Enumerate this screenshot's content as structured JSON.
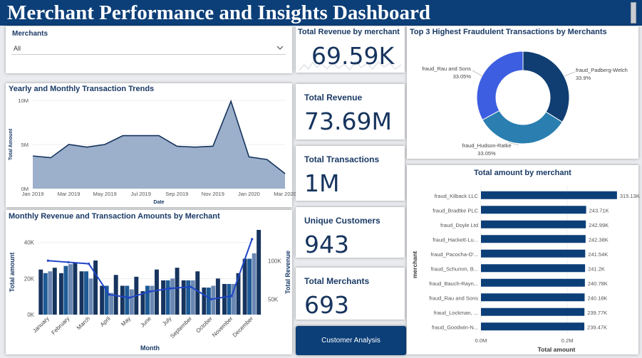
{
  "header": {
    "title": "Merchant Performance and Insights Dashboard"
  },
  "slicer": {
    "label": "Merchants",
    "value": "All"
  },
  "kpis": {
    "revenue_by_merchant": {
      "title": "Total Revenue by merchant",
      "value": "69.59K"
    },
    "total_revenue": {
      "title": "Total Revenue",
      "value": "73.69M"
    },
    "total_transactions": {
      "title": "Total Transactions",
      "value": "1M"
    },
    "unique_customers": {
      "title": "Unique Customers",
      "value": "943"
    },
    "total_merchants": {
      "title": "Total Merchants",
      "value": "693"
    }
  },
  "button": {
    "label": "Customer Analysis"
  },
  "chart_data": [
    {
      "id": "trend",
      "type": "area",
      "title": "Yearly and Monthly Transaction Trends",
      "xlabel": "Date",
      "ylabel": "Total Amount",
      "x_ticks": [
        "Jan 2019",
        "Mar 2019",
        "May 2019",
        "Jul 2019",
        "Sep 2019",
        "Nov 2019",
        "Jan 2020",
        "Mar 2020"
      ],
      "y_ticks": [
        "0M",
        "5M",
        "10M"
      ],
      "ylim": [
        0,
        10
      ],
      "x": [
        "2019-01",
        "2019-02",
        "2019-03",
        "2019-04",
        "2019-05",
        "2019-06",
        "2019-07",
        "2019-08",
        "2019-09",
        "2019-10",
        "2019-11",
        "2019-12",
        "2020-01",
        "2020-02",
        "2020-03"
      ],
      "values": [
        3.7,
        3.5,
        5.0,
        4.7,
        5.0,
        6.0,
        6.0,
        6.0,
        4.8,
        4.7,
        4.8,
        9.9,
        3.6,
        3.3,
        1.7
      ],
      "color": "#8ba2c2"
    },
    {
      "id": "monthly",
      "type": "bar",
      "title": "Monthly Revenue and Transaction Amounts by Merchant",
      "xlabel": "Month",
      "ylabel": "Total amount",
      "y2label": "Total Revenue",
      "categories": [
        "January",
        "February",
        "March",
        "April",
        "May",
        "June",
        "July",
        "September",
        "October",
        "November",
        "December"
      ],
      "y_ticks": [
        "0K",
        "20K",
        "40K"
      ],
      "ylim": [
        0,
        47
      ],
      "y2_ticks": [
        "50K",
        "100K"
      ],
      "y2lim": [
        30,
        140
      ],
      "series": [
        {
          "values": [
            25,
            23,
            24,
            16,
            16,
            13,
            19,
            19,
            15,
            17,
            31
          ],
          "color": "#16345e"
        },
        {
          "values": [
            23,
            27,
            24,
            16,
            16,
            16,
            19,
            19,
            15,
            17,
            31
          ],
          "color": "#1d5a96"
        },
        {
          "values": [
            24,
            28,
            20,
            12,
            14,
            16,
            20,
            19,
            16,
            17,
            34
          ],
          "color": "#6b88b3"
        },
        {
          "values": [
            26,
            29,
            30,
            22,
            21,
            25,
            26,
            24,
            20,
            23,
            47
          ],
          "color": "#16345e"
        }
      ],
      "line": {
        "values": [
          100,
          98,
          96,
          56,
          52,
          60,
          64,
          66,
          50,
          54,
          128
        ],
        "color": "#1f45c8"
      }
    },
    {
      "id": "donut",
      "type": "pie",
      "title": "Top 3 Highest Fraudulent Transactions by Merchants",
      "categories": [
        "fraud_Padberg-Welch",
        "fraud_Hudson-Ratke",
        "fraud_Rau and Sons"
      ],
      "values": [
        33.9,
        33.05,
        33.05
      ],
      "value_labels": [
        "33.9%",
        "33.05%",
        "33.05%"
      ],
      "colors": [
        "#103e72",
        "#2a7fb0",
        "#3d5ee0"
      ]
    },
    {
      "id": "hbar",
      "type": "bar",
      "orientation": "horizontal",
      "title": "Total amount by merchant",
      "xlabel": "Total amount",
      "ylabel": "merchant",
      "categories": [
        "fraud_Kilback LLC",
        "fraud_Bradtke PLC",
        "fraud_Doyle Ltd",
        "fraud_Hackett-Lu...",
        "fraud_Pacocha-O'...",
        "fraud_Schumm, B...",
        "fraud_Bauch-Rayn...",
        "fraud_Rau and Sons",
        "fraud_Lockman, ...",
        "fraud_Goodwin-N..."
      ],
      "values": [
        315.13,
        243.71,
        242.99,
        242.38,
        241.54,
        241.2,
        240.78,
        240.18,
        239.77,
        239.47
      ],
      "value_labels": [
        "315.13K",
        "243.71K",
        "242.99K",
        "242.38K",
        "241.54K",
        "241.2K",
        "240.78K",
        "240.18K",
        "239.77K",
        "239.47K"
      ],
      "x_ticks": [
        "0.0M",
        "0.2M"
      ],
      "xlim": [
        0,
        0.35
      ],
      "color": "#0c3f78"
    }
  ]
}
